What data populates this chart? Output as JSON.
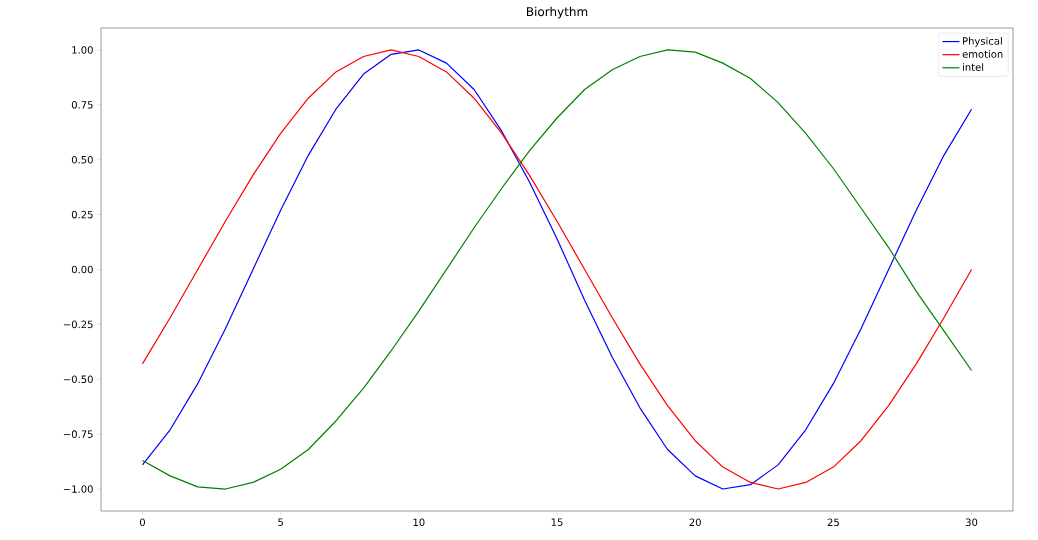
{
  "chart_data": {
    "type": "line",
    "title": "Biorhythm",
    "x": [
      0,
      1,
      2,
      3,
      4,
      5,
      6,
      7,
      8,
      9,
      10,
      11,
      12,
      13,
      14,
      15,
      16,
      17,
      18,
      19,
      20,
      21,
      22,
      23,
      24,
      25,
      26,
      27,
      28,
      29,
      30
    ],
    "series": [
      {
        "name": "Physical",
        "color": "#0000ff",
        "values": [
          -0.89,
          -0.73,
          -0.52,
          -0.27,
          0.0,
          0.27,
          0.52,
          0.73,
          0.89,
          0.98,
          1.0,
          0.94,
          0.82,
          0.63,
          0.4,
          0.14,
          -0.14,
          -0.4,
          -0.63,
          -0.82,
          -0.94,
          -1.0,
          -0.98,
          -0.89,
          -0.73,
          -0.52,
          -0.27,
          0.0,
          0.27,
          0.52,
          0.73
        ]
      },
      {
        "name": "emotion",
        "color": "#ff0000",
        "values": [
          -0.43,
          -0.22,
          0.0,
          0.22,
          0.43,
          0.62,
          0.78,
          0.9,
          0.97,
          1.0,
          0.97,
          0.9,
          0.78,
          0.62,
          0.43,
          0.22,
          0.0,
          -0.22,
          -0.43,
          -0.62,
          -0.78,
          -0.9,
          -0.97,
          -1.0,
          -0.97,
          -0.9,
          -0.78,
          -0.62,
          -0.43,
          -0.22,
          0.0
        ]
      },
      {
        "name": "intel",
        "color": "#008000",
        "values": [
          -0.87,
          -0.94,
          -0.99,
          -1.0,
          -0.97,
          -0.91,
          -0.82,
          -0.69,
          -0.54,
          -0.37,
          -0.19,
          0.0,
          0.19,
          0.37,
          0.54,
          0.69,
          0.82,
          0.91,
          0.97,
          1.0,
          0.99,
          0.94,
          0.87,
          0.76,
          0.62,
          0.46,
          0.28,
          0.1,
          -0.1,
          -0.28,
          -0.46
        ]
      }
    ],
    "xlim": [
      -1.5,
      31.5
    ],
    "ylim": [
      -1.1,
      1.1
    ],
    "xticks": [
      0,
      5,
      10,
      15,
      20,
      25,
      30
    ],
    "yticks": [
      {
        "value": -1,
        "label": "−1.00"
      },
      {
        "value": -0.75,
        "label": "−0.75"
      },
      {
        "value": -0.5,
        "label": "−0.50"
      },
      {
        "value": -0.25,
        "label": "−0.25"
      },
      {
        "value": 0,
        "label": "0.00"
      },
      {
        "value": 0.25,
        "label": "0.25"
      },
      {
        "value": 0.5,
        "label": "0.50"
      },
      {
        "value": 0.75,
        "label": "0.75"
      },
      {
        "value": 1,
        "label": "1.00"
      }
    ],
    "legend": "top right",
    "marker": "none",
    "line_style": "solid"
  }
}
